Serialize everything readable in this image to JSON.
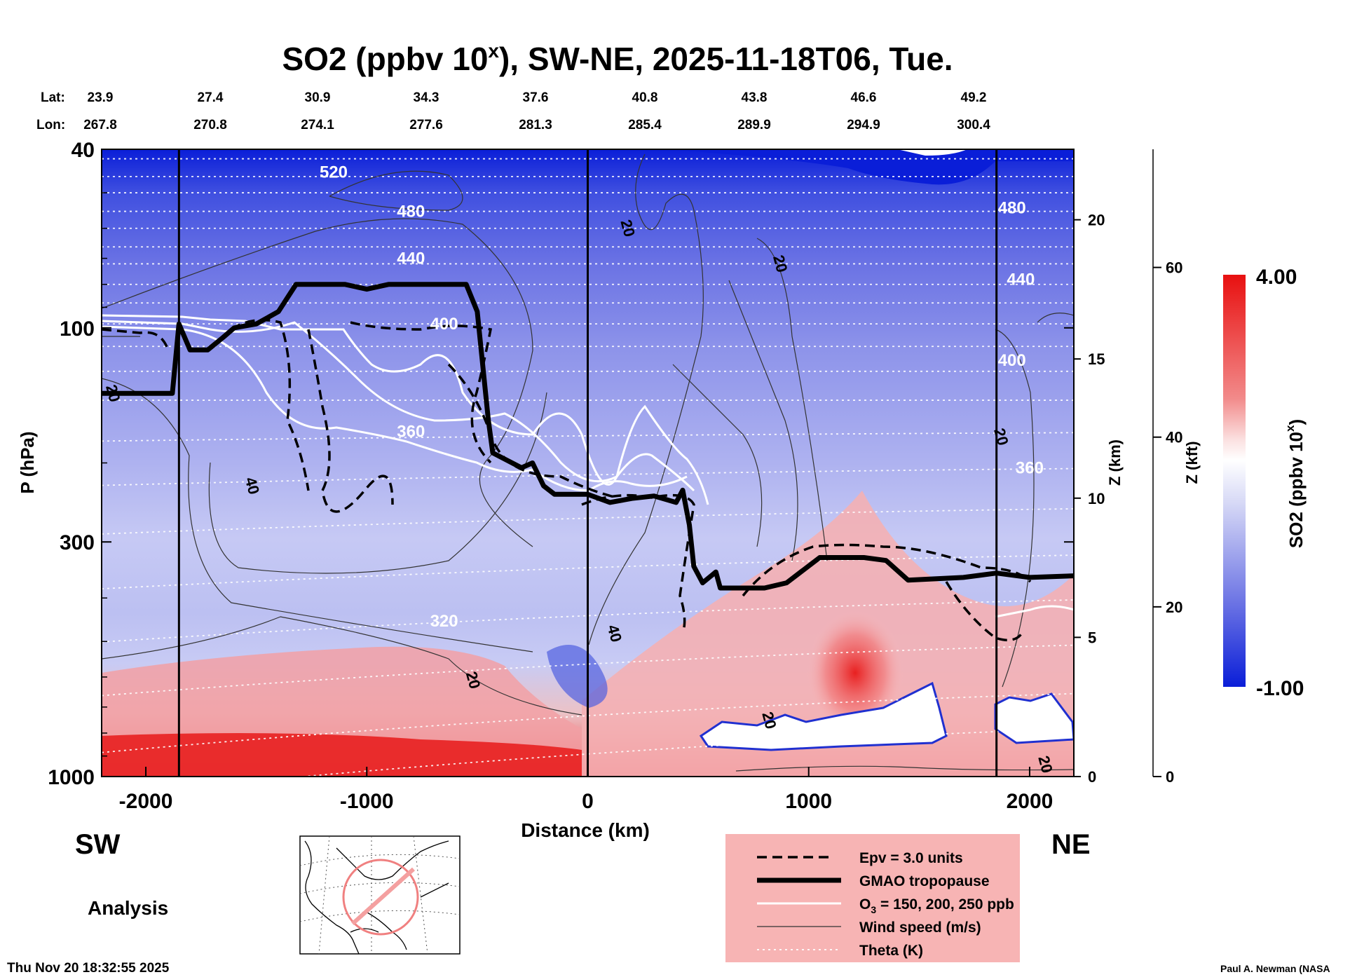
{
  "title_main": "SO2 (ppbv 10",
  "title_sup": "x",
  "title_rest": "), SW-NE, 2025-11-18T06, Tue.",
  "lat_label": "Lat:",
  "lon_label": "Lon:",
  "lats": [
    "23.9",
    "27.4",
    "30.9",
    "34.3",
    "37.6",
    "40.8",
    "43.8",
    "46.6",
    "49.2"
  ],
  "lons": [
    "267.8",
    "270.8",
    "274.1",
    "277.6",
    "281.3",
    "285.4",
    "289.9",
    "294.9",
    "300.4"
  ],
  "ylabel": "P (hPa)",
  "xlabel": "Distance (km)",
  "zkm_label": "Z (km)",
  "zkft_label": "Z (kft)",
  "sw_label": "SW",
  "ne_label": "NE",
  "analysis_label": "Analysis",
  "timestamp": "Thu Nov 20 18:32:55 2025",
  "credit": "Paul A. Newman (NASA",
  "colorbar": {
    "label": "SO2 (ppbv 10",
    "label_sup": "x",
    "label_end": ")",
    "max_label": "4.00",
    "min_label": "-1.00",
    "max": 4.0,
    "min": -1.0,
    "colors": [
      "#0a1ed8",
      "#8088e8",
      "#ffffff",
      "#f2a0a0",
      "#e81010"
    ]
  },
  "legend": {
    "items": [
      {
        "label": "Epv = 3.0 units",
        "style": "dashed"
      },
      {
        "label": "GMAO tropopause",
        "style": "thick"
      },
      {
        "label": "O",
        "sub": "3",
        "rest": " = 150, 200, 250 ppb",
        "style": "white"
      },
      {
        "label": "Wind speed (m/s)",
        "style": "thin"
      },
      {
        "label": "Theta (K)",
        "style": "dotted"
      }
    ]
  },
  "chart_data": {
    "type": "heatmap",
    "title": "SO2 (ppbv 10^x), SW-NE, 2025-11-18T06, Tue.",
    "xlabel": "Distance (km)",
    "ylabel": "P (hPa)",
    "xlim": [
      -2200,
      2200
    ],
    "ylim_hpa": [
      1000,
      40
    ],
    "y_scale": "log",
    "x_ticks": [
      -2000,
      -1000,
      0,
      1000,
      2000
    ],
    "y_ticks": [
      40,
      100,
      300,
      1000
    ],
    "zkm_ticks": [
      0,
      5,
      10,
      15,
      20
    ],
    "zkft_ticks": [
      0,
      20,
      40,
      60
    ],
    "section_x_km": [
      -1850,
      0,
      1850
    ],
    "theta_labels": [
      {
        "value": "520",
        "x": -1150,
        "p": 45
      },
      {
        "value": "480",
        "x": -800,
        "p": 55
      },
      {
        "value": "440",
        "x": -800,
        "p": 70
      },
      {
        "value": "400",
        "x": -650,
        "p": 98
      },
      {
        "value": "360",
        "x": -800,
        "p": 170
      },
      {
        "value": "320",
        "x": -650,
        "p": 450
      },
      {
        "value": "480",
        "x": 1920,
        "p": 54
      },
      {
        "value": "440",
        "x": 1960,
        "p": 78
      },
      {
        "value": "400",
        "x": 1920,
        "p": 118
      },
      {
        "value": "360",
        "x": 2000,
        "p": 205
      }
    ],
    "wind_labels": [
      {
        "value": "20",
        "x": -2150,
        "p": 140
      },
      {
        "value": "40",
        "x": -1520,
        "p": 225
      },
      {
        "value": "20",
        "x": -520,
        "p": 610
      },
      {
        "value": "20",
        "x": 180,
        "p": 60
      },
      {
        "value": "20",
        "x": 870,
        "p": 72
      },
      {
        "value": "40",
        "x": 120,
        "p": 480
      },
      {
        "value": "20",
        "x": 1870,
        "p": 175
      },
      {
        "value": "20",
        "x": 820,
        "p": 750
      },
      {
        "value": "20",
        "x": 2070,
        "p": 940
      }
    ],
    "tropopause": [
      [
        -2200,
        140
      ],
      [
        -1880,
        140
      ],
      [
        -1850,
        98
      ],
      [
        -1800,
        112
      ],
      [
        -1720,
        112
      ],
      [
        -1650,
        105
      ],
      [
        -1600,
        100
      ],
      [
        -1500,
        98
      ],
      [
        -1400,
        92
      ],
      [
        -1320,
        80
      ],
      [
        -1100,
        80
      ],
      [
        -1000,
        82
      ],
      [
        -900,
        80
      ],
      [
        -550,
        80
      ],
      [
        -500,
        92
      ],
      [
        -450,
        160
      ],
      [
        -430,
        190
      ],
      [
        -300,
        205
      ],
      [
        -250,
        200
      ],
      [
        -200,
        225
      ],
      [
        -150,
        235
      ],
      [
        0,
        235
      ],
      [
        100,
        245
      ],
      [
        200,
        240
      ],
      [
        300,
        237
      ],
      [
        400,
        245
      ],
      [
        430,
        230
      ],
      [
        460,
        275
      ],
      [
        480,
        340
      ],
      [
        520,
        370
      ],
      [
        580,
        350
      ],
      [
        600,
        380
      ],
      [
        800,
        380
      ],
      [
        900,
        370
      ],
      [
        1050,
        325
      ],
      [
        1250,
        325
      ],
      [
        1350,
        330
      ],
      [
        1450,
        365
      ],
      [
        1700,
        360
      ],
      [
        1850,
        352
      ],
      [
        2000,
        360
      ],
      [
        2200,
        357
      ]
    ],
    "series": [
      {
        "name": "Epv = 3.0 units"
      },
      {
        "name": "GMAO tropopause"
      },
      {
        "name": "O3 = 150, 200, 250 ppb"
      },
      {
        "name": "Wind speed (m/s)"
      },
      {
        "name": "Theta (K)"
      }
    ]
  }
}
